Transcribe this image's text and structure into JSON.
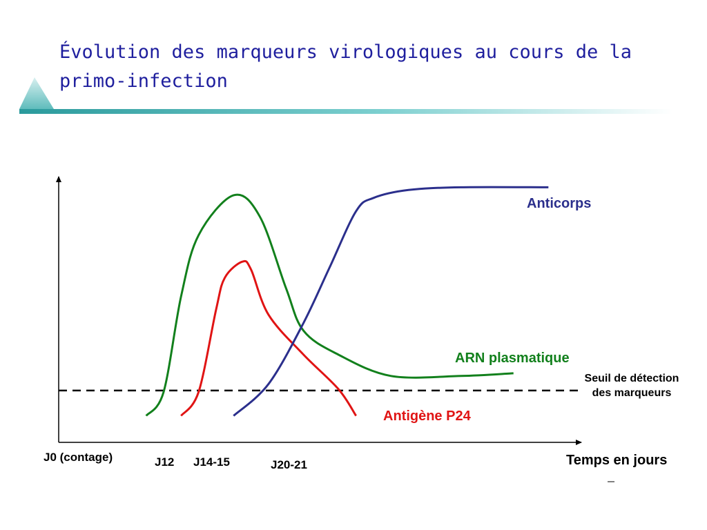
{
  "title": "Évolution des marqueurs virologiques au cours de la primo-infection",
  "colors": {
    "title": "#1f1f9e",
    "accent_bar": "#3aa6a8",
    "anticorps": "#2b2f8c",
    "arn": "#12801c",
    "p24": "#e01414",
    "axis": "#000000",
    "threshold": "#000000"
  },
  "chart_data": {
    "type": "line",
    "title": "",
    "xlabel": "Temps en jours",
    "ylabel": "",
    "x_ticks": [
      "J0 (contage)",
      "J12",
      "J14-15",
      "J20-21"
    ],
    "xlim": [
      0,
      60
    ],
    "ylim": [
      0,
      100
    ],
    "grid": false,
    "threshold": {
      "label": "Seuil de détection des marqueurs",
      "value": 19.5,
      "style": "dashed"
    },
    "series": [
      {
        "name": "Anticorps",
        "color": "#2b2f8c",
        "x": [
          20,
          24,
          28,
          31,
          34,
          36,
          40,
          46,
          56
        ],
        "y": [
          10,
          22,
          45,
          66,
          87,
          92,
          95,
          96,
          96
        ]
      },
      {
        "name": "ARN plasmatique",
        "color": "#12801c",
        "x": [
          10,
          12,
          14,
          16,
          20,
          23,
          26,
          28,
          32,
          38,
          46,
          52
        ],
        "y": [
          10,
          19,
          55,
          78,
          93,
          85,
          58,
          42,
          33,
          25,
          25,
          26
        ]
      },
      {
        "name": "Antigène P24",
        "color": "#e01414",
        "x": [
          14,
          16,
          18,
          19,
          21,
          22,
          24,
          28,
          32,
          34
        ],
        "y": [
          10,
          19,
          50,
          62,
          68,
          65,
          48,
          33,
          20,
          10
        ]
      }
    ]
  }
}
